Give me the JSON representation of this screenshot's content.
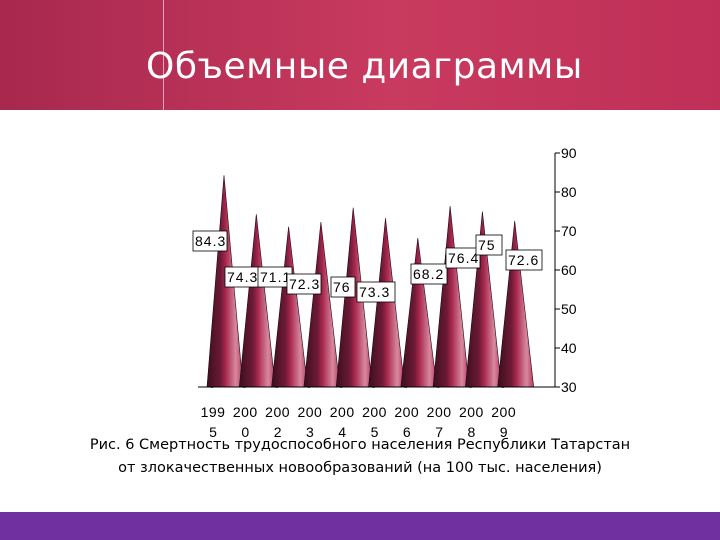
{
  "slide": {
    "title": "Объемные диаграммы"
  },
  "chart_data": {
    "type": "bar",
    "style": "3d-cone",
    "categories": [
      "1995",
      "2000",
      "2002",
      "2003",
      "2004",
      "2005",
      "2006",
      "2007",
      "2008",
      "2009"
    ],
    "tick_labels": [
      [
        "199",
        "5"
      ],
      [
        "200",
        "0"
      ],
      [
        "200",
        "2"
      ],
      [
        "200",
        "3"
      ],
      [
        "200",
        "4"
      ],
      [
        "200",
        "5"
      ],
      [
        "200",
        "6"
      ],
      [
        "200",
        "7"
      ],
      [
        "200",
        "8"
      ],
      [
        "200",
        "9"
      ]
    ],
    "values": [
      84.3,
      74.3,
      71.1,
      72.3,
      76,
      73.3,
      68.2,
      76.4,
      75,
      72.6
    ],
    "data_labels": [
      "84.3",
      "74.3",
      "71.1",
      "72.3",
      "76",
      "73.3",
      "68.2",
      "76.4",
      "75",
      "72.6"
    ],
    "ylim": [
      30,
      90
    ],
    "yticks": [
      30,
      40,
      50,
      60,
      70,
      80,
      90
    ],
    "y_axis_position": "right",
    "colors": {
      "face": "#a8284e",
      "face_light": "#d8889f",
      "face_dark": "#3a0f1d",
      "label_border": "#000000",
      "label_bg": "#ffffff"
    },
    "xlabel": "",
    "ylabel": ""
  },
  "caption": {
    "line1": "Рис. 6 Смертность трудоспособного населения Республики Татарстан",
    "line2": "от злокачественных новообразований  (на 100 тыс. населения)"
  }
}
